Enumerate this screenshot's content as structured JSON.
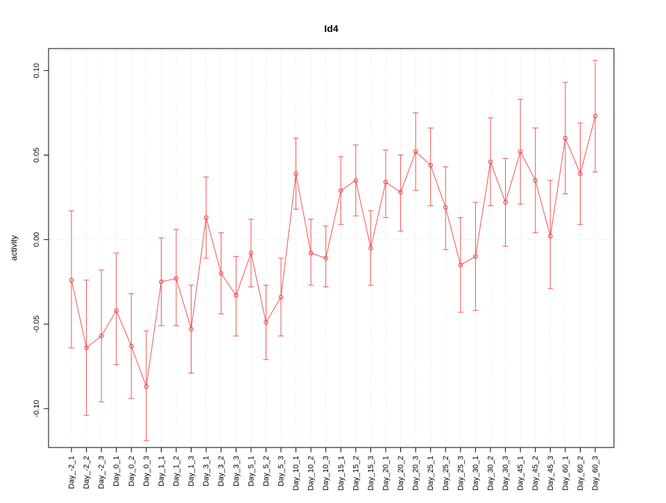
{
  "chart_data": {
    "type": "line",
    "title": "Id4",
    "xlabel": "",
    "ylabel": "activity",
    "ylim": [
      -0.123,
      0.113
    ],
    "yticks": [
      -0.1,
      -0.05,
      0.0,
      0.05,
      0.1
    ],
    "ytick_labels": [
      "-0.10",
      "-0.05",
      "0.00",
      "0.05",
      "0.10"
    ],
    "grid": "dotted vertical line at every category and dotted horizontal line at y=0",
    "legend_position": "none",
    "series_color": "#f05050",
    "grid_color": "#d8d8d8",
    "categories": [
      "Day_-2_1",
      "Day_-2_2",
      "Day_-2_3",
      "Day_0_1",
      "Day_0_2",
      "Day_0_3",
      "Day_1_1",
      "Day_1_2",
      "Day_1_3",
      "Day_3_1",
      "Day_3_2",
      "Day_3_3",
      "Day_5_1",
      "Day_5_2",
      "Day_5_3",
      "Day_10_1",
      "Day_10_2",
      "Day_10_3",
      "Day_15_1",
      "Day_15_2",
      "Day_15_3",
      "Day_20_1",
      "Day_20_2",
      "Day_20_3",
      "Day_25_1",
      "Day_25_2",
      "Day_25_3",
      "Day_30_1",
      "Day_30_2",
      "Day_30_3",
      "Day_45_1",
      "Day_45_2",
      "Day_45_3",
      "Day_60_1",
      "Day_60_2",
      "Day_60_3"
    ],
    "values": [
      -0.024,
      -0.064,
      -0.057,
      -0.042,
      -0.063,
      -0.087,
      -0.025,
      -0.023,
      -0.053,
      0.013,
      -0.02,
      -0.033,
      -0.008,
      -0.049,
      -0.034,
      0.039,
      -0.008,
      -0.011,
      0.029,
      0.035,
      -0.005,
      0.034,
      0.028,
      0.052,
      0.044,
      0.019,
      -0.015,
      -0.01,
      0.046,
      0.022,
      0.052,
      0.035,
      0.002,
      0.06,
      0.039,
      0.073
    ],
    "error_low": [
      -0.064,
      -0.104,
      -0.096,
      -0.074,
      -0.094,
      -0.119,
      -0.051,
      -0.051,
      -0.079,
      -0.011,
      -0.044,
      -0.057,
      -0.028,
      -0.071,
      -0.057,
      0.018,
      -0.027,
      -0.028,
      0.009,
      0.014,
      -0.027,
      0.013,
      0.005,
      0.029,
      0.02,
      -0.006,
      -0.043,
      -0.042,
      0.02,
      -0.004,
      0.021,
      0.004,
      -0.029,
      0.027,
      0.009,
      0.04
    ],
    "error_high": [
      0.017,
      -0.024,
      -0.018,
      -0.008,
      -0.032,
      -0.054,
      0.001,
      0.006,
      -0.027,
      0.037,
      0.004,
      -0.01,
      0.012,
      -0.027,
      -0.011,
      0.06,
      0.012,
      0.008,
      0.049,
      0.056,
      0.017,
      0.053,
      0.05,
      0.075,
      0.066,
      0.043,
      0.013,
      0.022,
      0.072,
      0.048,
      0.083,
      0.066,
      0.035,
      0.093,
      0.069,
      0.106
    ]
  }
}
